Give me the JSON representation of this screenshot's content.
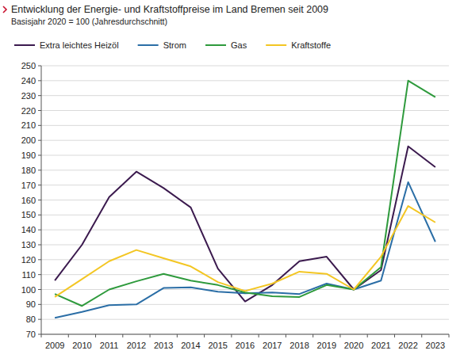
{
  "chart_data": {
    "type": "line",
    "title": "Entwicklung der Energie- und Kraftstoffpreise im Land Bremen seit 2009",
    "subtitle": "Basisjahr 2020 = 100 (Jahresdurchschnitt)",
    "categories": [
      "2009",
      "2010",
      "2011",
      "2012",
      "2013",
      "2014",
      "2015",
      "2016",
      "2017",
      "2018",
      "2019",
      "2020",
      "2021",
      "2022",
      "2023"
    ],
    "series": [
      {
        "name": "Extra leichtes Heizöl",
        "color": "#3b1a4e",
        "values": [
          106,
          130,
          162,
          179,
          168,
          155,
          114,
          92,
          103,
          119,
          122,
          100,
          113,
          196,
          182
        ]
      },
      {
        "name": "Strom",
        "color": "#2b6ea6",
        "values": [
          81,
          85,
          89.5,
          90,
          101,
          101.5,
          98.5,
          97.5,
          98,
          97,
          104,
          100,
          106,
          172,
          132
        ]
      },
      {
        "name": "Gas",
        "color": "#2e9a3c",
        "values": [
          97,
          89,
          100,
          105.5,
          110.5,
          106,
          103,
          98,
          95.5,
          95,
          103,
          100,
          115,
          240,
          229
        ]
      },
      {
        "name": "Kraftstoffe",
        "color": "#f3c623",
        "values": [
          95,
          107,
          119,
          126.5,
          121,
          115.5,
          105,
          99,
          104,
          112,
          110.5,
          100,
          122,
          156,
          145
        ]
      }
    ],
    "ylim": [
      70,
      250
    ],
    "yticks": [
      70,
      80,
      90,
      100,
      110,
      120,
      130,
      140,
      150,
      160,
      170,
      180,
      190,
      200,
      210,
      220,
      230,
      240,
      250
    ],
    "grid": true,
    "legend": "top-left"
  }
}
